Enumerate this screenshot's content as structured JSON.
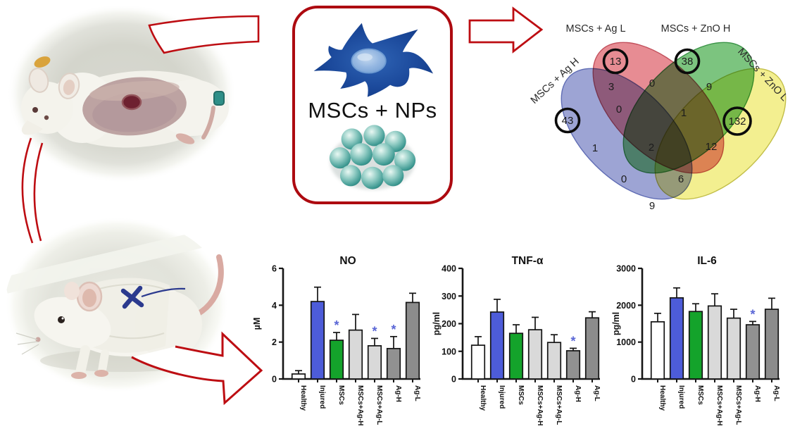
{
  "box": {
    "label": "MSCs + NPs"
  },
  "colors": {
    "accent_red": "#bd0d12",
    "significance_star": "#5b67d6",
    "axis_black": "#161616",
    "bar_colors": [
      "#ffffff",
      "#4d5cd9",
      "#14a32b",
      "#d9d9d9",
      "#d9d9d9",
      "#919191",
      "#8c8c8c"
    ]
  },
  "venn": {
    "sets": [
      {
        "id": "ag_h",
        "label": "MSCs + Ag H",
        "color": "#8790cb"
      },
      {
        "id": "ag_l",
        "label": "MSCs + Ag L",
        "color": "#e2737b"
      },
      {
        "id": "zno_h",
        "label": "MSCs + ZnO H",
        "color": "#5fb763"
      },
      {
        "id": "zno_l",
        "label": "MSCs + ZnO L",
        "color": "#f0ec78"
      }
    ],
    "regions": [
      {
        "sets": [
          "ag_h"
        ],
        "count": 43,
        "circled": true
      },
      {
        "sets": [
          "ag_l"
        ],
        "count": 13,
        "circled": true
      },
      {
        "sets": [
          "zno_h"
        ],
        "count": 38,
        "circled": true
      },
      {
        "sets": [
          "zno_l"
        ],
        "count": 132,
        "circled": true
      },
      {
        "sets": [
          "ag_h",
          "ag_l"
        ],
        "count": 3
      },
      {
        "sets": [
          "ag_l",
          "zno_h"
        ],
        "count": 0
      },
      {
        "sets": [
          "zno_h",
          "zno_l"
        ],
        "count": 9
      },
      {
        "sets": [
          "ag_h",
          "ag_l",
          "zno_h"
        ],
        "count": 0
      },
      {
        "sets": [
          "ag_l",
          "zno_h",
          "zno_l"
        ],
        "count": 1
      },
      {
        "sets": [
          "ag_h",
          "zno_h"
        ],
        "count": 1
      },
      {
        "sets": [
          "ag_l",
          "zno_l"
        ],
        "count": 12
      },
      {
        "sets": [
          "ag_h",
          "ag_l",
          "zno_h",
          "zno_l"
        ],
        "count": 2
      },
      {
        "sets": [
          "ag_h",
          "zno_h",
          "zno_l"
        ],
        "count": 0
      },
      {
        "sets": [
          "ag_h",
          "ag_l",
          "zno_l"
        ],
        "count": 6
      },
      {
        "sets": [
          "ag_h",
          "zno_l"
        ],
        "count": 9
      }
    ]
  },
  "chart_data": {
    "type": "bar",
    "categories": [
      "Healthy",
      "Injured",
      "MSCs",
      "MSCs+Ag-H",
      "MSCs+Ag-L",
      "Ag-H",
      "Ag-L"
    ],
    "grid": false,
    "legend": false,
    "error_bars": true,
    "significance_marker": "*",
    "charts": [
      {
        "title": "NO",
        "ylabel": "µM",
        "ylim": [
          0,
          6
        ],
        "yticks": [
          0,
          2,
          4,
          6
        ],
        "values": [
          0.27,
          4.2,
          2.1,
          2.65,
          1.8,
          1.65,
          4.15
        ],
        "errors": [
          0.18,
          0.78,
          0.42,
          0.85,
          0.4,
          0.65,
          0.5
        ],
        "significant_indices": [
          2,
          4,
          5
        ]
      },
      {
        "title": "TNF-α",
        "ylabel": "pg/ml",
        "ylim": [
          0,
          400
        ],
        "yticks": [
          0,
          100,
          200,
          300,
          400
        ],
        "values": [
          122,
          242,
          165,
          178,
          132,
          102,
          221
        ],
        "errors": [
          31,
          46,
          31,
          45,
          28,
          9,
          22
        ],
        "significant_indices": [
          5
        ]
      },
      {
        "title": "IL-6",
        "ylabel": "pg/ml",
        "ylim": [
          0,
          3000
        ],
        "yticks": [
          0,
          1000,
          2000,
          3000
        ],
        "values": [
          1550,
          2200,
          1830,
          1980,
          1650,
          1470,
          1890
        ],
        "errors": [
          230,
          270,
          210,
          330,
          240,
          90,
          300
        ],
        "significant_indices": [
          5
        ]
      }
    ]
  }
}
